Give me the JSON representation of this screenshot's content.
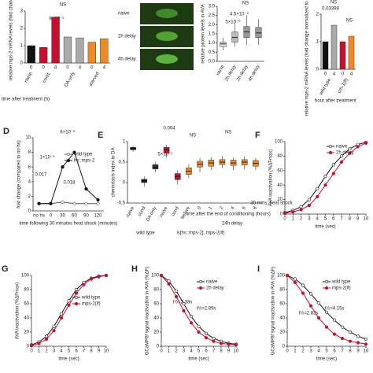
{
  "images": {
    "labels": [
      "naive",
      "2h delay",
      "4h delay"
    ]
  },
  "chart_data": [
    {
      "type": "bar",
      "ylabel": "relative mps-2 mRNA levels (fold change)",
      "xlabel": "time after treatment (h)",
      "categories": [
        "0",
        "0",
        "4",
        "0",
        "4",
        "0",
        "4"
      ],
      "groups": [
        "naive",
        "cond.",
        null,
        "DA only",
        null,
        "starved",
        null
      ],
      "values": [
        1.0,
        0.9,
        2.65,
        1.5,
        1.45,
        1.2,
        1.4
      ],
      "colors": [
        "#111111",
        "#c8102e",
        "#c8102e",
        "#aaaaaa",
        "#aaaaaa",
        "#f08a24",
        "#f08a24"
      ],
      "ylim": [
        0,
        3
      ],
      "yticks": [
        0,
        1,
        2,
        3
      ],
      "annotations": [
        "9×10⁻⁵",
        "NS"
      ]
    },
    {
      "type": "box",
      "ylabel": "relative protein levels in AVA",
      "categories": [
        "naive",
        "2h delay",
        "2h delay",
        "4h delay"
      ],
      "values": [
        [
          0.6,
          0.8,
          0.95,
          1.05,
          1.3
        ],
        [
          0.8,
          1.05,
          1.3,
          1.6,
          2.1
        ],
        [
          0.9,
          1.3,
          1.6,
          1.9,
          2.5
        ],
        [
          0.9,
          1.3,
          1.55,
          1.85,
          2.3
        ]
      ],
      "colors": [
        "#dddddd",
        "#bbbbbb",
        "#999999",
        "#999999"
      ],
      "ylim": [
        0,
        3
      ],
      "yticks": [
        {
          "value": 0,
          "label": "0.0"
        },
        {
          "value": 0.5,
          "label": "0.5"
        },
        {
          "value": 1,
          "label": "1.0"
        },
        {
          "value": 1.5,
          "label": "1.5"
        },
        {
          "value": 2,
          "label": "2.0"
        },
        {
          "value": 2.5,
          "label": "2.5"
        },
        {
          "value": 3,
          "label": "3.0"
        }
      ],
      "annotations": [
        "5×10⁻⁵",
        "4.5×10⁻⁵",
        "NS"
      ]
    },
    {
      "type": "bar",
      "ylabel": "relative mps-2 mRNA levels (fold change normalized to naive wild type)",
      "xlabel": "hour after treatment",
      "categories": [
        "0",
        "4",
        "0",
        "4"
      ],
      "groups": [
        "wild type",
        null,
        "crh-1(lf)",
        null
      ],
      "values": [
        1.0,
        1.6,
        1.0,
        1.2
      ],
      "colors": [
        "#111111",
        "#aaaaaa",
        "#c8102e",
        "#f08a24"
      ],
      "ylim": [
        0,
        2
      ],
      "yticks": [
        0,
        1,
        2
      ],
      "annotations": [
        "0.03398",
        "NS",
        "NS"
      ]
    },
    {
      "type": "line",
      "panel": "D",
      "ylabel": "fold change (compared to no hs)",
      "xlabel": "time following 30 minutes heat shock (minutes)",
      "categories": [
        "no hs",
        "0",
        "30",
        "60",
        "90",
        "120"
      ],
      "series": [
        {
          "name": "wild type",
          "color": "#555555",
          "values": [
            1,
            1,
            1.2,
            1,
            1,
            1
          ]
        },
        {
          "name": "hs::mps-2",
          "color": "#111111",
          "values": [
            1,
            1,
            6,
            8,
            3,
            1.5
          ]
        }
      ],
      "ylim": [
        0,
        10
      ],
      "yticks": [
        0,
        2,
        4,
        6,
        8,
        10
      ],
      "annotations": [
        "6×10⁻⁶",
        "1×10⁻⁵",
        "0.017",
        "0.018"
      ]
    },
    {
      "type": "box",
      "panel": "E",
      "ylabel": "chemotaxis index to DA",
      "categories": [
        "naive",
        "cond",
        "DA only",
        "naive",
        "cond",
        "before",
        "0",
        "1",
        "2",
        "4",
        "6",
        "8"
      ],
      "values": [
        [
          0.75,
          0.8,
          0.83,
          0.86,
          0.9
        ],
        [
          -0.1,
          0,
          0.04,
          0.08,
          0.15
        ],
        [
          0.25,
          0.33,
          0.38,
          0.44,
          0.5
        ],
        [
          0.6,
          0.72,
          0.8,
          0.86,
          0.92
        ],
        [
          -0.05,
          0.07,
          0.15,
          0.22,
          0.3
        ],
        [
          0.1,
          0.2,
          0.28,
          0.36,
          0.45
        ],
        [
          0.25,
          0.38,
          0.45,
          0.52,
          0.6
        ],
        [
          0.3,
          0.4,
          0.48,
          0.55,
          0.62
        ],
        [
          0.35,
          0.44,
          0.5,
          0.56,
          0.65
        ],
        [
          0.3,
          0.42,
          0.48,
          0.55,
          0.62
        ],
        [
          0.32,
          0.43,
          0.5,
          0.56,
          0.64
        ],
        [
          0.3,
          0.4,
          0.47,
          0.54,
          0.6
        ]
      ],
      "colors": [
        "#222222",
        "#222222",
        "#333333",
        "#c8102e",
        "#c8102e",
        "#f08a24",
        "#f08a24",
        "#f08a24",
        "#f08a24",
        "#f08a24",
        "#f08a24",
        "#f08a24"
      ],
      "ylim": [
        -0.5,
        1
      ],
      "yticks": [
        -0.5,
        0,
        0.5,
        1
      ],
      "annotations": [
        "0.004",
        "NS",
        "NS",
        "5×10⁻⁵",
        "time after the end of conditioning (hours)",
        "wild type",
        "ls[hs::mps-2], mps-2(lf)",
        "30 mins. heat shock",
        "24h delay"
      ]
    },
    {
      "type": "line",
      "panel": "F",
      "ylabel": "AVA inactivation (%ΔFmax)",
      "xlabel": "time (sec)",
      "x": [
        0,
        1,
        2,
        3,
        4,
        5,
        6,
        7,
        8,
        9,
        10
      ],
      "series": [
        {
          "name": "naive",
          "color": "#111111",
          "values": [
            2,
            5,
            10,
            20,
            35,
            52,
            68,
            80,
            90,
            96,
            99
          ]
        },
        {
          "name": "2h delay",
          "color": "#c8102e",
          "values": [
            1,
            3,
            6,
            12,
            24,
            40,
            56,
            72,
            84,
            93,
            98
          ]
        }
      ],
      "xlim": [
        0,
        10
      ],
      "xticks": [
        0,
        1,
        2,
        3,
        4,
        5,
        6,
        7,
        8,
        9,
        10
      ],
      "ylim": [
        0,
        100
      ],
      "yticks": [
        0,
        20,
        40,
        60,
        80,
        100
      ]
    },
    {
      "type": "line",
      "panel": "G",
      "ylabel": "AVA inactivation (%ΔFmax)",
      "xlabel": "time (sec)",
      "x": [
        0,
        1,
        2,
        3,
        4,
        5,
        6,
        7,
        8,
        9,
        10
      ],
      "series": [
        {
          "name": "wild type",
          "color": "#111111",
          "values": [
            2,
            6,
            14,
            28,
            46,
            64,
            80,
            90,
            96,
            99,
            100
          ]
        },
        {
          "name": "mps-2(lf)",
          "color": "#c8102e",
          "values": [
            1,
            4,
            10,
            22,
            40,
            58,
            75,
            87,
            95,
            98,
            100
          ]
        }
      ],
      "xlim": [
        0,
        10
      ],
      "xticks": [
        0,
        1,
        2,
        3,
        4,
        5,
        6,
        7,
        8,
        9,
        10
      ],
      "ylim": [
        0,
        100
      ],
      "yticks": [
        0,
        20,
        40,
        60,
        80,
        100
      ]
    },
    {
      "type": "line",
      "panel": "H",
      "ylabel": "GCaMP6f signal inactivation in AVA (%ΔF)",
      "xlabel": "time (sec)",
      "x": [
        0,
        1,
        2,
        3,
        4,
        5,
        6,
        7,
        8,
        9,
        10
      ],
      "series": [
        {
          "name": "naive",
          "color": "#111111",
          "values": [
            100,
            92,
            78,
            60,
            42,
            28,
            18,
            11,
            7,
            4,
            3
          ]
        },
        {
          "name": "2h delay",
          "color": "#c8102e",
          "values": [
            100,
            88,
            70,
            50,
            33,
            20,
            12,
            7,
            4,
            3,
            2
          ]
        }
      ],
      "xlim": [
        0,
        10
      ],
      "xticks": [
        0,
        1,
        2,
        3,
        4,
        5,
        6,
        7,
        8,
        9,
        10
      ],
      "ylim": [
        0,
        100
      ],
      "yticks": [
        0,
        20,
        40,
        60,
        80,
        100
      ],
      "annotations": [
        "t½=2.89s",
        "t½=2.38s"
      ]
    },
    {
      "type": "line",
      "panel": "I",
      "ylabel": "GCaMP6f signal inactivation in AVA (%ΔF)",
      "xlabel": "time (sec)",
      "x": [
        0,
        1,
        2,
        3,
        4,
        5,
        6,
        7,
        8,
        9,
        10
      ],
      "series": [
        {
          "name": "wild type",
          "color": "#111111",
          "values": [
            100,
            95,
            86,
            74,
            61,
            48,
            37,
            27,
            20,
            14,
            10
          ]
        },
        {
          "name": "mps-2(lf)",
          "color": "#c8102e",
          "values": [
            100,
            90,
            75,
            57,
            40,
            27,
            17,
            11,
            7,
            5,
            3
          ]
        }
      ],
      "xlim": [
        0,
        10
      ],
      "xticks": [
        0,
        1,
        2,
        3,
        4,
        5,
        6,
        7,
        8,
        9,
        10
      ],
      "ylim": [
        0,
        100
      ],
      "yticks": [
        0,
        20,
        40,
        60,
        80,
        100
      ],
      "annotations": [
        "t½=4.15s",
        "t½=2.82s"
      ]
    }
  ]
}
